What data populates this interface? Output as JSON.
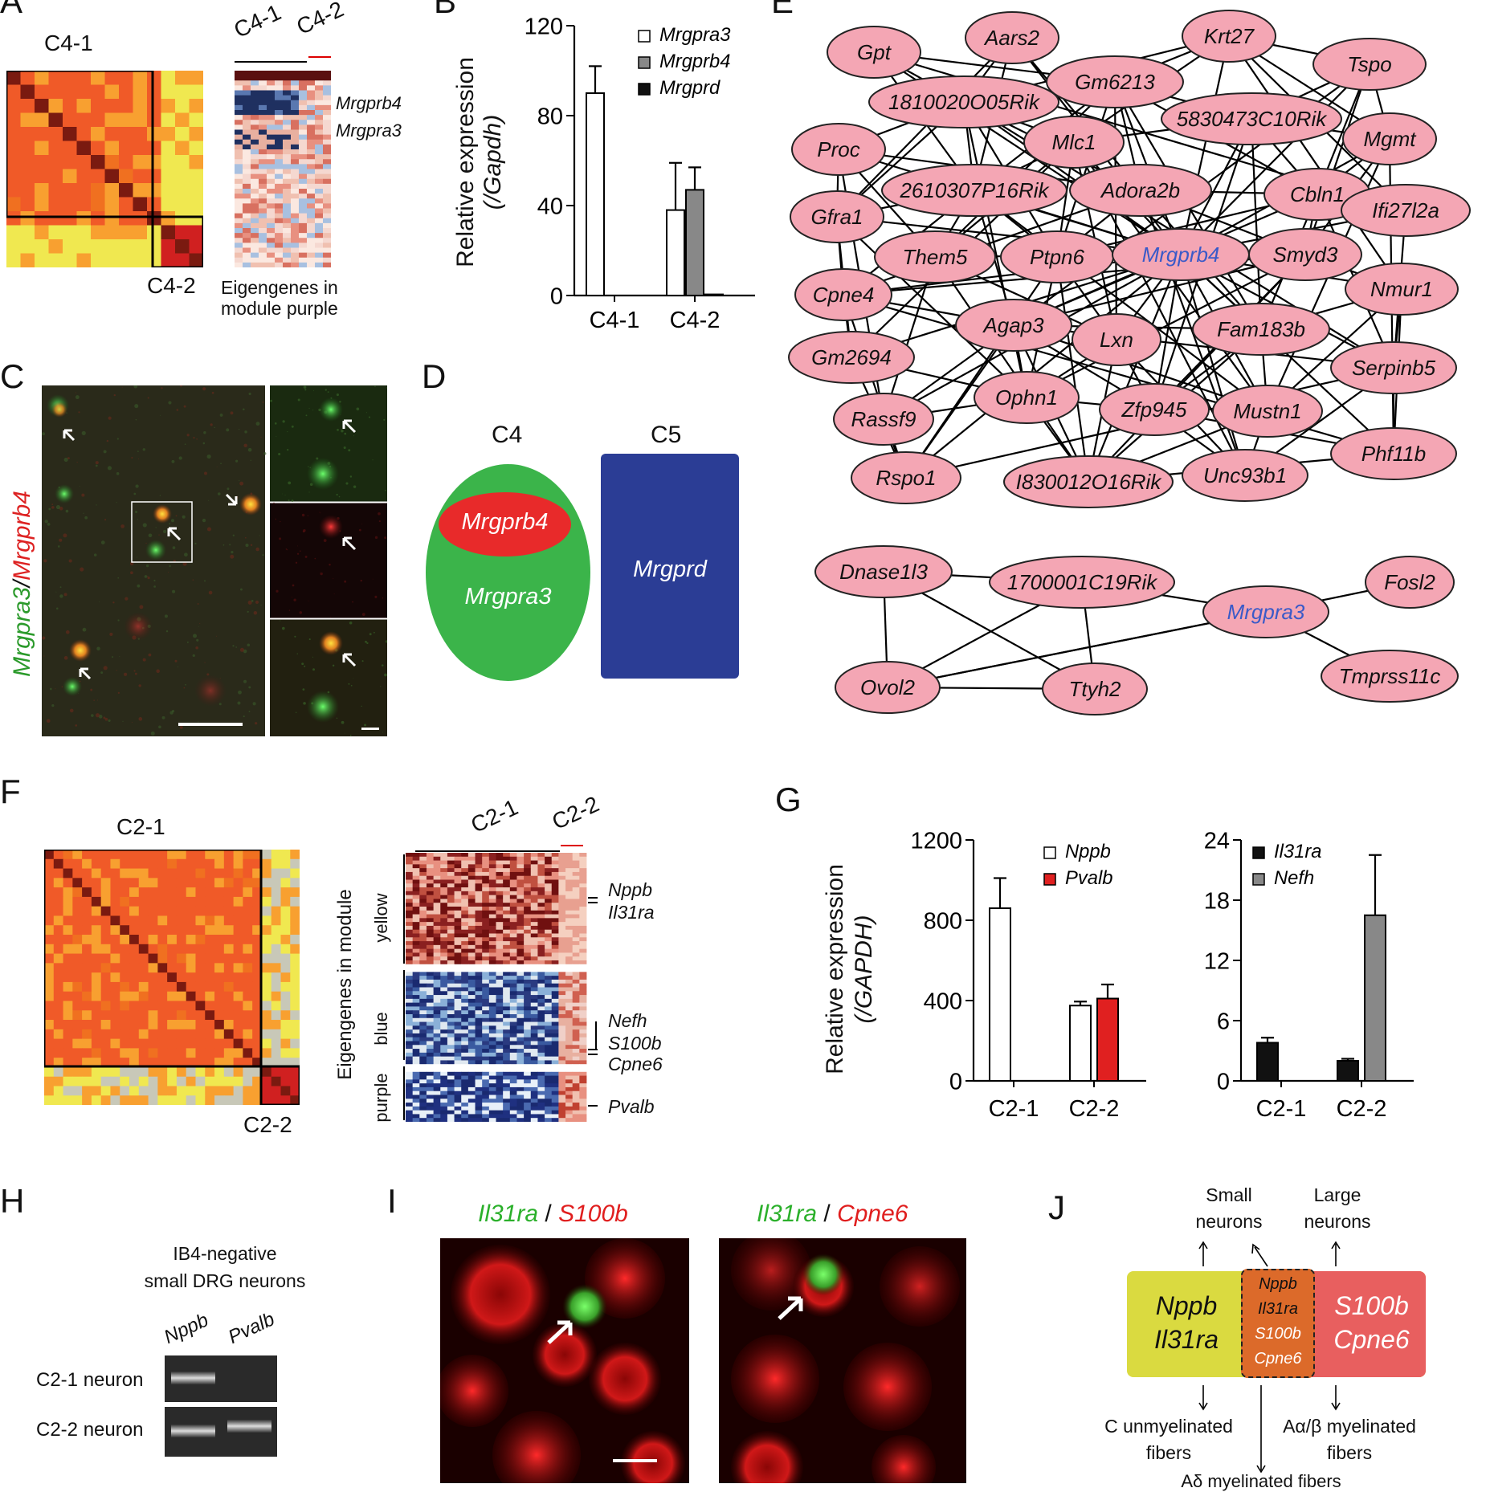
{
  "panels": {
    "A": {
      "label": "A",
      "c41": "C4-1",
      "c42": "C4-2",
      "hm_c41": "C4-1",
      "hm_c42": "C4-2",
      "gene1": "Mrgprb4",
      "gene2": "Mrgpra3",
      "caption1": "Eigengenes in",
      "caption2": "module purple"
    },
    "B": {
      "label": "B",
      "ylabel1": "Relative expression",
      "ylabel2": "(/Gapdh)"
    },
    "C": {
      "label": "C",
      "side_green": "Mrgpra3",
      "side_slash": "/",
      "side_red": "Mrgprb4"
    },
    "D": {
      "label": "D",
      "c4": "C4",
      "c5": "C5",
      "oval_red": "Mrgprb4",
      "oval_green": "Mrgpra3",
      "box_blue": "Mrgprd"
    },
    "E": {
      "label": "E",
      "nodes": [
        "Gpt",
        "Aars2",
        "Krt27",
        "Gm6213",
        "Tspo",
        "1810020O05Rik",
        "5830473C10Rik",
        "Proc",
        "Mlc1",
        "Mgmt",
        "2610307P16Rik",
        "Adora2b",
        "Cbln1",
        "Gfra1",
        "Ifi27l2a",
        "Them5",
        "Ptpn6",
        "Mrgprb4",
        "Smyd3",
        "Nmur1",
        "Cpne4",
        "Agap3",
        "Lxn",
        "Fam183b",
        "Gm2694",
        "Serpinb5",
        "Ophn1",
        "Zfp945",
        "Mustn1",
        "Rassf9",
        "Phf11b",
        "Rspo1",
        "I830012O16Rik",
        "Unc93b1"
      ],
      "nodes2": [
        "Dnase1l3",
        "1700001C19Rik",
        "Fosl2",
        "Mrgpra3",
        "Ovol2",
        "Ttyh2",
        "Tmprss11c"
      ]
    },
    "F": {
      "label": "F",
      "c21": "C2-1",
      "c22": "C2-2",
      "hm_c21": "C2-1",
      "hm_c22": "C2-2",
      "vlabel": "Eigengenes in module",
      "mod_yellow": "yellow",
      "mod_blue": "blue",
      "mod_purple": "purple",
      "g1": "Nppb",
      "g2": "Il31ra",
      "g3": "Nefh",
      "g4": "S100b",
      "g5": "Cpne6",
      "g6": "Pvalb"
    },
    "G": {
      "label": "G",
      "ylabel1": "Relative expression",
      "ylabel2": "(/GAPDH)"
    },
    "H": {
      "label": "H",
      "title1": "IB4-negative",
      "title2": "small DRG neurons",
      "col1": "Nppb",
      "col2": "Pvalb",
      "row1": "C2-1 neuron",
      "row2": "C2-2 neuron"
    },
    "I": {
      "label": "I",
      "l1a": "Il31ra",
      "l1s": " / ",
      "l1b": "S100b",
      "l2a": "Il31ra",
      "l2s": " / ",
      "l2b": "Cpne6"
    },
    "J": {
      "label": "J",
      "small": "Small",
      "small2": "neurons",
      "large": "Large",
      "large2": "neurons",
      "left1": "Nppb",
      "left2": "Il31ra",
      "mid1": "Nppb",
      "mid2": "Il31ra",
      "mid3": "S100b",
      "mid4": "Cpne6",
      "right1": "S100b",
      "right2": "Cpne6",
      "bl1": "C unmyelinated",
      "bl2": "fibers",
      "br1": "Aα/β myelinated",
      "br2": "fibers",
      "bm": "Aδ myelinated fibers"
    }
  },
  "chart_data": [
    {
      "id": "B",
      "type": "bar",
      "categories": [
        "C4-1",
        "C4-2"
      ],
      "ylim": [
        0,
        120
      ],
      "yticks": [
        0,
        40,
        80,
        120
      ],
      "ylabel": "Relative expression (/Gapdh)",
      "legend_position": "top-right",
      "series": [
        {
          "name": "Mrgpra3",
          "color": "#ffffff",
          "values": [
            90,
            38
          ],
          "errors": [
            12,
            21
          ]
        },
        {
          "name": "Mrgprb4",
          "color": "#888888",
          "values": [
            0,
            47
          ],
          "errors": [
            0,
            10
          ]
        },
        {
          "name": "Mrgprd",
          "color": "#111111",
          "values": [
            0,
            0.5
          ],
          "errors": [
            0,
            0
          ]
        }
      ]
    },
    {
      "id": "G-left",
      "type": "bar",
      "categories": [
        "C2-1",
        "C2-2"
      ],
      "ylim": [
        0,
        1200
      ],
      "yticks": [
        0,
        400,
        800,
        1200
      ],
      "ylabel": "Relative expression (/GAPDH)",
      "legend_position": "top-right",
      "series": [
        {
          "name": "Nppb",
          "color": "#ffffff",
          "values": [
            860,
            375
          ],
          "errors": [
            150,
            20
          ]
        },
        {
          "name": "Pvalb",
          "color": "#e02020",
          "values": [
            0,
            410
          ],
          "errors": [
            0,
            70
          ]
        }
      ]
    },
    {
      "id": "G-right",
      "type": "bar",
      "categories": [
        "C2-1",
        "C2-2"
      ],
      "ylim": [
        0,
        24
      ],
      "yticks": [
        0,
        6,
        12,
        18,
        24
      ],
      "legend_position": "top-right",
      "series": [
        {
          "name": "Il31ra",
          "color": "#111111",
          "values": [
            3.8,
            2.0
          ],
          "errors": [
            0.5,
            0.2
          ]
        },
        {
          "name": "Nefh",
          "color": "#888888",
          "values": [
            0,
            16.5
          ],
          "errors": [
            0,
            6
          ]
        }
      ]
    }
  ]
}
